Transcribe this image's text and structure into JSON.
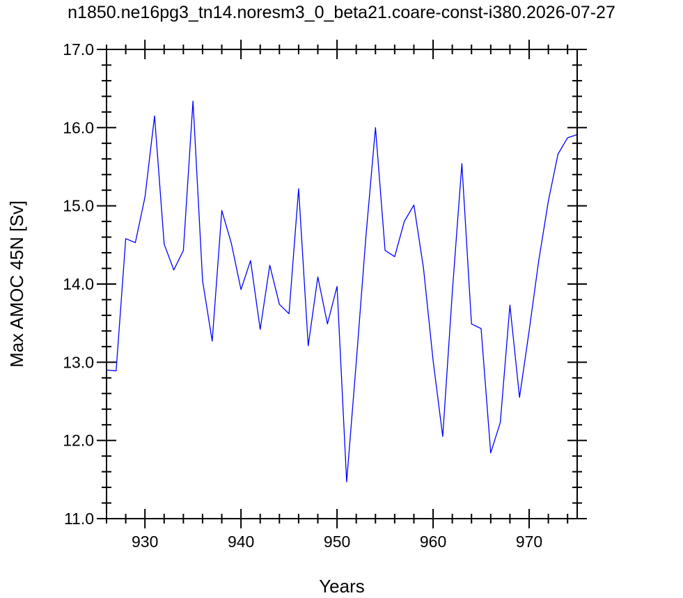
{
  "chart_data": {
    "type": "line",
    "title": "n1850.ne16pg3_tn14.noresm3_0_beta21.coare-const-i380.2026-07-27",
    "xlabel": "Years",
    "ylabel": "Max AMOC 45N [Sv]",
    "xlim": [
      926,
      975
    ],
    "ylim": [
      11.0,
      17.0
    ],
    "xticks": [
      930,
      940,
      950,
      960,
      970
    ],
    "yticks": [
      11.0,
      12.0,
      13.0,
      14.0,
      15.0,
      16.0,
      17.0
    ],
    "xtick_labels": [
      "930",
      "940",
      "950",
      "960",
      "970"
    ],
    "ytick_labels": [
      "11.0",
      "12.0",
      "13.0",
      "14.0",
      "15.0",
      "16.0",
      "17.0"
    ],
    "grid": false,
    "series": [
      {
        "color": "#0000ff",
        "x": [
          926,
          927,
          928,
          929,
          930,
          931,
          932,
          933,
          934,
          935,
          936,
          937,
          938,
          939,
          940,
          941,
          942,
          943,
          944,
          945,
          946,
          947,
          948,
          949,
          950,
          951,
          952,
          953,
          954,
          955,
          956,
          957,
          958,
          959,
          960,
          961,
          962,
          963,
          964,
          965,
          966,
          967,
          968,
          969,
          970,
          971,
          972,
          973,
          974,
          975
        ],
        "y": [
          12.9,
          12.89,
          14.58,
          14.53,
          15.11,
          16.15,
          14.51,
          14.18,
          14.43,
          16.34,
          14.04,
          13.27,
          14.94,
          14.52,
          13.93,
          14.3,
          13.42,
          14.24,
          13.74,
          13.62,
          15.22,
          13.21,
          14.09,
          13.49,
          13.97,
          11.47,
          13.0,
          14.6,
          16.0,
          14.43,
          14.35,
          14.8,
          15.01,
          14.2,
          13.02,
          12.05,
          13.9,
          15.54,
          13.49,
          13.43,
          11.84,
          12.23,
          13.73,
          12.55,
          13.4,
          14.3,
          15.06,
          15.66,
          15.87,
          15.91
        ]
      }
    ]
  }
}
